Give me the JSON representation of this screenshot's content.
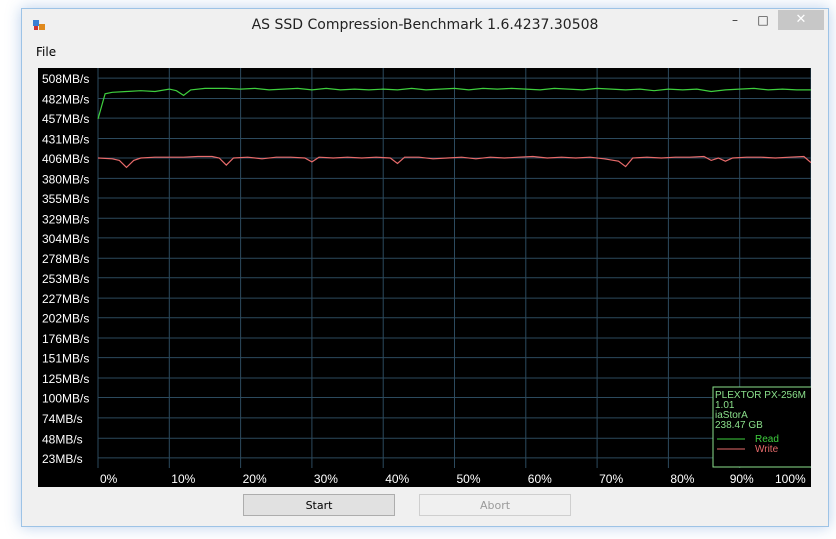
{
  "window": {
    "title": "AS SSD Compression-Benchmark 1.6.4237.30508",
    "minimize_label": "–",
    "maximize_label": "□",
    "close_label": "✕"
  },
  "menu": {
    "file_label": "File"
  },
  "buttons": {
    "start_label": "Start",
    "abort_label": "Abort"
  },
  "chart_data": {
    "type": "line",
    "y_tick_labels": [
      "508MB/s",
      "482MB/s",
      "457MB/s",
      "431MB/s",
      "406MB/s",
      "380MB/s",
      "355MB/s",
      "329MB/s",
      "304MB/s",
      "278MB/s",
      "253MB/s",
      "227MB/s",
      "202MB/s",
      "176MB/s",
      "151MB/s",
      "125MB/s",
      "100MB/s",
      "74MB/s",
      "48MB/s",
      "23MB/s"
    ],
    "y_tick_values": [
      508,
      482,
      457,
      431,
      406,
      380,
      355,
      329,
      304,
      278,
      253,
      227,
      202,
      176,
      151,
      125,
      100,
      74,
      48,
      23
    ],
    "x_tick_labels": [
      "0%",
      "10%",
      "20%",
      "30%",
      "40%",
      "50%",
      "60%",
      "70%",
      "80%",
      "90%",
      "100%"
    ],
    "xlim": [
      0,
      100
    ],
    "ylim": [
      10,
      521
    ],
    "grid": true,
    "legend_placement": "bottom-right",
    "background": "#000000",
    "grid_color": "#2c4a5e",
    "label_color": "#ffffff",
    "series": [
      {
        "name": "Read",
        "color": "#3ecf3e",
        "points": [
          [
            0,
            456
          ],
          [
            1,
            488
          ],
          [
            2,
            490
          ],
          [
            4,
            491
          ],
          [
            6,
            492
          ],
          [
            8,
            491
          ],
          [
            10,
            494
          ],
          [
            11,
            492
          ],
          [
            12,
            486
          ],
          [
            13,
            493
          ],
          [
            15,
            495
          ],
          [
            18,
            495
          ],
          [
            20,
            494
          ],
          [
            22,
            495
          ],
          [
            24,
            493
          ],
          [
            26,
            494
          ],
          [
            28,
            495
          ],
          [
            30,
            493
          ],
          [
            32,
            495
          ],
          [
            34,
            493
          ],
          [
            36,
            494
          ],
          [
            38,
            493
          ],
          [
            40,
            494
          ],
          [
            42,
            493
          ],
          [
            44,
            495
          ],
          [
            46,
            493
          ],
          [
            48,
            494
          ],
          [
            50,
            495
          ],
          [
            52,
            493
          ],
          [
            54,
            495
          ],
          [
            56,
            494
          ],
          [
            58,
            495
          ],
          [
            60,
            494
          ],
          [
            62,
            493
          ],
          [
            64,
            495
          ],
          [
            66,
            494
          ],
          [
            68,
            493
          ],
          [
            70,
            495
          ],
          [
            72,
            494
          ],
          [
            74,
            493
          ],
          [
            76,
            494
          ],
          [
            78,
            492
          ],
          [
            80,
            494
          ],
          [
            82,
            493
          ],
          [
            84,
            494
          ],
          [
            86,
            491
          ],
          [
            88,
            493
          ],
          [
            90,
            494
          ],
          [
            92,
            495
          ],
          [
            94,
            493
          ],
          [
            96,
            494
          ],
          [
            98,
            493
          ],
          [
            100,
            493
          ]
        ]
      },
      {
        "name": "Write",
        "color": "#e86b6b",
        "points": [
          [
            0,
            406
          ],
          [
            2,
            405
          ],
          [
            3,
            403
          ],
          [
            4,
            394
          ],
          [
            5,
            403
          ],
          [
            6,
            406
          ],
          [
            8,
            407
          ],
          [
            10,
            407
          ],
          [
            12,
            407
          ],
          [
            14,
            408
          ],
          [
            16,
            408
          ],
          [
            17,
            406
          ],
          [
            18,
            397
          ],
          [
            19,
            406
          ],
          [
            21,
            407
          ],
          [
            23,
            405
          ],
          [
            25,
            407
          ],
          [
            27,
            407
          ],
          [
            29,
            406
          ],
          [
            30,
            401
          ],
          [
            31,
            407
          ],
          [
            33,
            406
          ],
          [
            35,
            407
          ],
          [
            37,
            406
          ],
          [
            39,
            407
          ],
          [
            41,
            406
          ],
          [
            42,
            399
          ],
          [
            43,
            407
          ],
          [
            45,
            407
          ],
          [
            47,
            405
          ],
          [
            49,
            406
          ],
          [
            51,
            407
          ],
          [
            53,
            405
          ],
          [
            55,
            407
          ],
          [
            57,
            406
          ],
          [
            59,
            407
          ],
          [
            61,
            408
          ],
          [
            63,
            406
          ],
          [
            65,
            407
          ],
          [
            67,
            406
          ],
          [
            69,
            407
          ],
          [
            71,
            405
          ],
          [
            73,
            402
          ],
          [
            74,
            395
          ],
          [
            75,
            406
          ],
          [
            77,
            407
          ],
          [
            79,
            406
          ],
          [
            81,
            407
          ],
          [
            83,
            407
          ],
          [
            85,
            408
          ],
          [
            86,
            403
          ],
          [
            87,
            406
          ],
          [
            88,
            402
          ],
          [
            89,
            406
          ],
          [
            91,
            407
          ],
          [
            93,
            407
          ],
          [
            95,
            406
          ],
          [
            97,
            407
          ],
          [
            99,
            408
          ],
          [
            100,
            400
          ]
        ]
      }
    ],
    "legend": {
      "drive": "PLEXTOR PX-256M",
      "firmware": "1.01",
      "driver": "iaStorA",
      "capacity": "238.47 GB",
      "read_label": "Read",
      "write_label": "Write"
    }
  }
}
